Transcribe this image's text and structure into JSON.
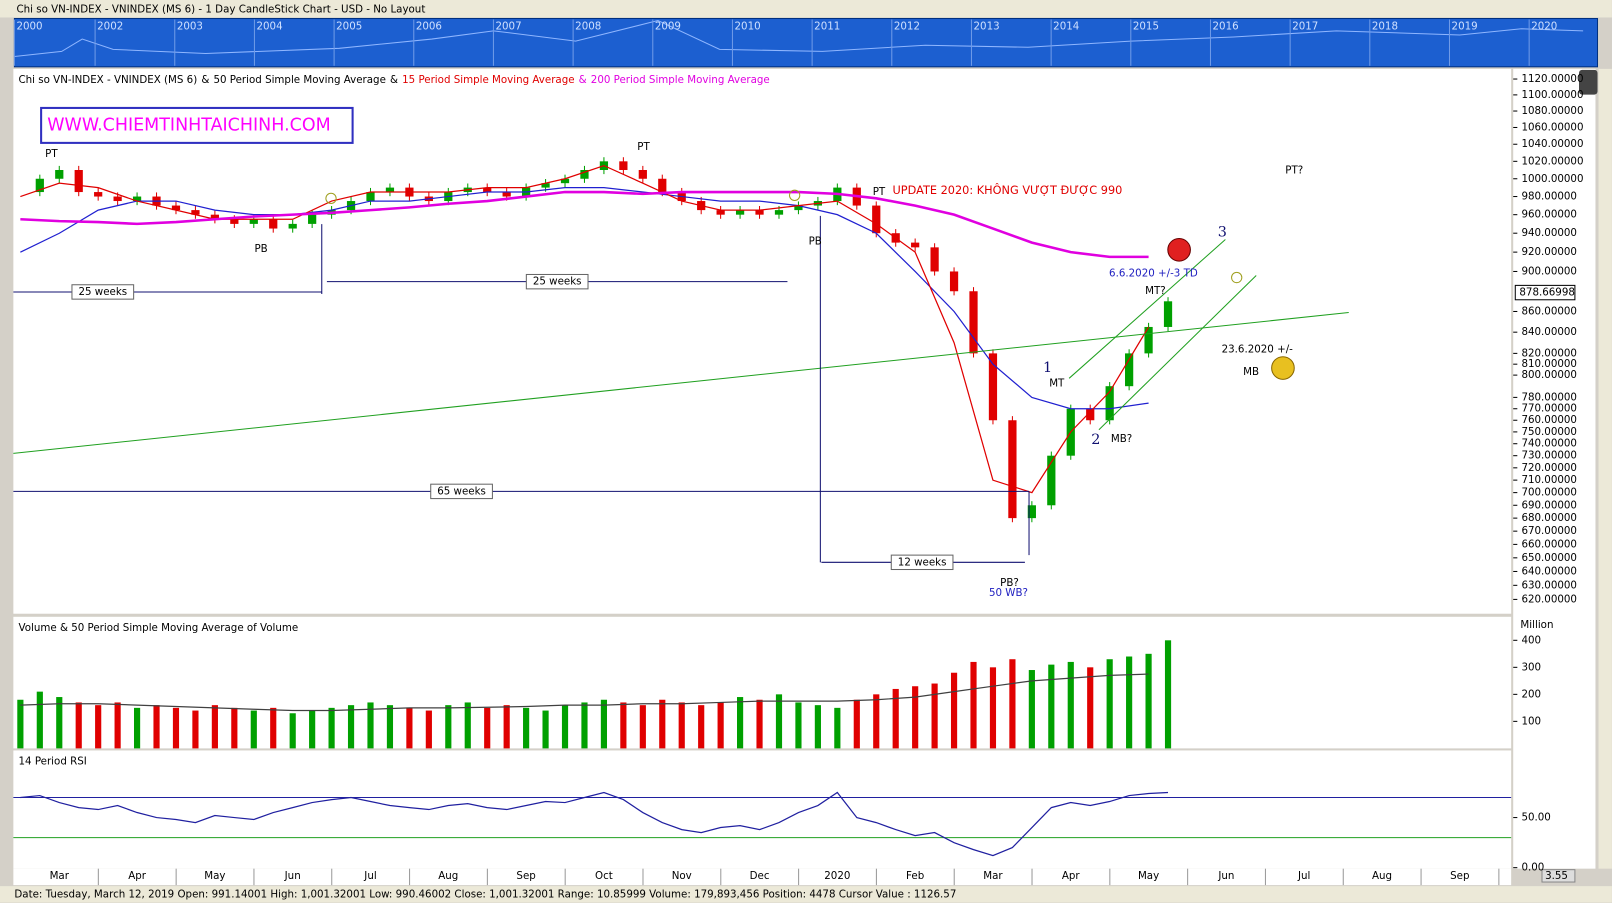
{
  "window": {
    "title": "Chi so VN-INDEX - VNINDEX (MS 6) - 1 Day CandleStick Chart - USD - No Layout",
    "overview_years": [
      "2000",
      "2002",
      "2003",
      "2004",
      "2005",
      "2006",
      "2007",
      "2008",
      "2009",
      "2010",
      "2011",
      "2012",
      "2013",
      "2014",
      "2015",
      "2016",
      "2017",
      "2018",
      "2019",
      "2020"
    ]
  },
  "watermark": "WWW.CHIEMTINHTAICHINH.COM",
  "annotations": [
    "PT",
    "PT",
    "PT",
    "PB",
    "PB",
    "25 weeks",
    "25 weeks",
    "65 weeks",
    "12 weeks",
    "UPDATE 2020: KHÔNG VƯỢT ĐƯỢC 990",
    "PT?",
    "6.6.2020 +/-3 TD",
    "MT?",
    "3",
    "1",
    "MT",
    "2",
    "MB?",
    "23.6.2020 +/-",
    "MB",
    "PB?",
    "50 WB?"
  ],
  "status_bar": "Date: Tuesday, March 12, 2019 Open: 991.14001 High: 1,001.32001 Low: 990.46002 Close: 1,001.32001 Range: 10.85999 Volume: 179,893,456 Position: 4478 Cursor Value : 1126.57",
  "zoom": "3.55",
  "chart_data": [
    {
      "type": "candlestick",
      "title": "Chi so VN-INDEX - VNINDEX (MS 6)",
      "legend_separator": "&",
      "log_scale": true,
      "ylim": [
        610,
        1133
      ],
      "yticks": [
        {
          "value": 1120,
          "label": "1120.00000"
        },
        {
          "value": 1100,
          "label": "1100.00000"
        },
        {
          "value": 1080,
          "label": "1080.00000"
        },
        {
          "value": 1060,
          "label": "1060.00000"
        },
        {
          "value": 1040,
          "label": "1040.00000"
        },
        {
          "value": 1020,
          "label": "1020.00000"
        },
        {
          "value": 1000,
          "label": "1000.00000"
        },
        {
          "value": 980,
          "label": "980.00000"
        },
        {
          "value": 960,
          "label": "960.00000"
        },
        {
          "value": 940,
          "label": "940.00000"
        },
        {
          "value": 920,
          "label": "920.00000"
        },
        {
          "value": 900,
          "label": "900.00000"
        },
        {
          "value": 860,
          "label": "860.00000"
        },
        {
          "value": 840,
          "label": "840.00000"
        },
        {
          "value": 820,
          "label": "820.00000"
        },
        {
          "value": 810,
          "label": "810.00000"
        },
        {
          "value": 800,
          "label": "800.00000"
        },
        {
          "value": 780,
          "label": "780.00000"
        },
        {
          "value": 770,
          "label": "770.00000"
        },
        {
          "value": 760,
          "label": "760.00000"
        },
        {
          "value": 750,
          "label": "750.00000"
        },
        {
          "value": 740,
          "label": "740.00000"
        },
        {
          "value": 730,
          "label": "730.00000"
        },
        {
          "value": 720,
          "label": "720.00000"
        },
        {
          "value": 710,
          "label": "710.00000"
        },
        {
          "value": 700,
          "label": "700.00000"
        },
        {
          "value": 690,
          "label": "690.00000"
        },
        {
          "value": 680,
          "label": "680.00000"
        },
        {
          "value": 670,
          "label": "670.00000"
        },
        {
          "value": 660,
          "label": "660.00000"
        },
        {
          "value": 650,
          "label": "650.00000"
        },
        {
          "value": 640,
          "label": "640.00000"
        },
        {
          "value": 630,
          "label": "630.00000"
        },
        {
          "value": 620,
          "label": "620.00000"
        }
      ],
      "last_value": {
        "value": 878.66998,
        "label": "878.66998"
      },
      "series": [
        {
          "name": "Chi so VN-INDEX - VNINDEX (MS 6)",
          "color": "#00a000",
          "down_color": "#e00000",
          "x": [
            0,
            0.25,
            0.5,
            0.75,
            1,
            1.25,
            1.5,
            1.75,
            2,
            2.25,
            2.5,
            2.75,
            3,
            3.25,
            3.5,
            3.75,
            4,
            4.25,
            4.5,
            4.75,
            5,
            5.25,
            5.5,
            5.75,
            6,
            6.25,
            6.5,
            6.75,
            7,
            7.25,
            7.5,
            7.75,
            8,
            8.25,
            8.5,
            8.75,
            9,
            9.25,
            9.5,
            9.75,
            10,
            10.25,
            10.5,
            10.75,
            11,
            11.25,
            11.5,
            11.75,
            12,
            12.25,
            12.5,
            12.75,
            13,
            13.25,
            13.5,
            13.75,
            14,
            14.25,
            14.5,
            14.75
          ],
          "values": [
            985,
            1000,
            1010,
            985,
            980,
            975,
            980,
            970,
            965,
            960,
            955,
            950,
            955,
            945,
            950,
            960,
            965,
            975,
            985,
            990,
            980,
            975,
            985,
            990,
            985,
            980,
            990,
            995,
            1000,
            1010,
            1020,
            1010,
            1000,
            985,
            975,
            965,
            960,
            965,
            960,
            965,
            970,
            975,
            990,
            970,
            940,
            930,
            925,
            900,
            880,
            820,
            760,
            680,
            690,
            730,
            770,
            760,
            790,
            820,
            845,
            870
          ]
        },
        {
          "name": "50 Period Simple Moving Average",
          "color": "#2020d0",
          "x": [
            0,
            0.5,
            1,
            1.5,
            2,
            2.5,
            3,
            3.5,
            4,
            4.5,
            5,
            5.5,
            6,
            6.5,
            7,
            7.5,
            8,
            8.5,
            9,
            9.5,
            10,
            10.5,
            11,
            11.5,
            12,
            12.5,
            13,
            13.5,
            14,
            14.5
          ],
          "values": [
            920,
            940,
            965,
            975,
            975,
            965,
            960,
            960,
            965,
            975,
            975,
            980,
            985,
            985,
            990,
            990,
            985,
            980,
            975,
            975,
            970,
            960,
            940,
            900,
            860,
            810,
            780,
            770,
            770,
            775
          ]
        },
        {
          "name": "15 Period Simple Moving Average",
          "color": "#e00000",
          "x": [
            0,
            0.5,
            1,
            1.5,
            2,
            2.5,
            3,
            3.5,
            4,
            4.5,
            5,
            5.5,
            6,
            6.5,
            7,
            7.5,
            8,
            8.5,
            9,
            9.5,
            10,
            10.5,
            11,
            11.5,
            12,
            12.5,
            13,
            13.5,
            14,
            14.5
          ],
          "values": [
            980,
            995,
            990,
            975,
            965,
            955,
            955,
            955,
            975,
            985,
            985,
            985,
            990,
            990,
            1000,
            1015,
            995,
            975,
            965,
            965,
            970,
            975,
            950,
            920,
            830,
            710,
            700,
            750,
            785,
            845
          ]
        },
        {
          "name": "200 Period Simple Moving Average",
          "color": "#e000e0",
          "x": [
            0,
            0.5,
            1,
            1.5,
            2,
            2.5,
            3,
            3.5,
            4,
            4.5,
            5,
            5.5,
            6,
            6.5,
            7,
            7.5,
            8,
            8.5,
            9,
            9.5,
            10,
            10.5,
            11,
            11.5,
            12,
            12.5,
            13,
            13.5,
            14,
            14.5
          ],
          "values": [
            955,
            953,
            952,
            950,
            952,
            955,
            958,
            960,
            962,
            965,
            968,
            972,
            975,
            980,
            985,
            985,
            983,
            985,
            985,
            985,
            985,
            983,
            978,
            970,
            960,
            945,
            930,
            920,
            915,
            915
          ]
        }
      ]
    },
    {
      "type": "bar",
      "title": "Volume & 50 Period Simple Moving Average of Volume",
      "y_unit": "Million",
      "ylim": [
        0,
        487
      ],
      "yticks": [
        100,
        200,
        300,
        400
      ],
      "series": [
        {
          "color": "#00a000",
          "down_color": "#e00000",
          "values": [
            180,
            210,
            190,
            170,
            160,
            170,
            150,
            160,
            150,
            140,
            160,
            150,
            140,
            150,
            130,
            140,
            150,
            160,
            170,
            160,
            150,
            140,
            160,
            170,
            150,
            160,
            150,
            140,
            160,
            170,
            180,
            170,
            160,
            180,
            170,
            160,
            170,
            190,
            180,
            200,
            170,
            160,
            150,
            180,
            200,
            220,
            230,
            240,
            280,
            320,
            300,
            330,
            290,
            310,
            320,
            300,
            330,
            340,
            350,
            400
          ]
        },
        {
          "color": "#404040",
          "x": [
            0,
            0.5,
            1,
            1.5,
            2,
            2.5,
            3,
            3.5,
            4,
            4.5,
            5,
            5.5,
            6,
            6.5,
            7,
            7.5,
            8,
            8.5,
            9,
            9.5,
            10,
            10.5,
            11,
            11.5,
            12,
            12.5,
            13,
            13.5,
            14,
            14.5
          ],
          "values": [
            160,
            165,
            165,
            160,
            155,
            150,
            145,
            140,
            140,
            145,
            150,
            150,
            152,
            155,
            160,
            160,
            165,
            165,
            170,
            175,
            175,
            175,
            180,
            190,
            210,
            230,
            250,
            260,
            270,
            275
          ]
        }
      ]
    },
    {
      "type": "line",
      "title": "14 Period RSI",
      "ylim": [
        -1,
        117
      ],
      "yticks": [
        {
          "value": 50,
          "label": "50.00"
        },
        {
          "value": 0,
          "label": "0.00"
        }
      ],
      "levels": [
        {
          "value": 70,
          "color": "#2020a0"
        },
        {
          "value": 30,
          "color": "#20a020"
        }
      ],
      "xlim": [
        -0.09,
        19.16
      ],
      "xticks": [
        {
          "value": 0.5,
          "label": "Mar"
        },
        {
          "value": 1.5,
          "label": "Apr"
        },
        {
          "value": 2.5,
          "label": "May"
        },
        {
          "value": 3.5,
          "label": "Jun"
        },
        {
          "value": 4.5,
          "label": "Jul"
        },
        {
          "value": 5.5,
          "label": "Aug"
        },
        {
          "value": 6.5,
          "label": "Sep"
        },
        {
          "value": 7.5,
          "label": "Oct"
        },
        {
          "value": 8.5,
          "label": "Nov"
        },
        {
          "value": 9.5,
          "label": "Dec"
        },
        {
          "value": 10.5,
          "label": "2020"
        },
        {
          "value": 11.5,
          "label": "Feb"
        },
        {
          "value": 12.5,
          "label": "Mar"
        },
        {
          "value": 13.5,
          "label": "Apr"
        },
        {
          "value": 14.5,
          "label": "May"
        },
        {
          "value": 15.5,
          "label": "Jun"
        },
        {
          "value": 16.5,
          "label": "Jul"
        },
        {
          "value": 17.5,
          "label": "Aug"
        },
        {
          "value": 18.5,
          "label": "Sep"
        }
      ],
      "series": [
        {
          "color": "#2020a0",
          "values": [
            70,
            72,
            65,
            60,
            58,
            62,
            55,
            50,
            48,
            45,
            52,
            50,
            48,
            55,
            60,
            65,
            68,
            70,
            66,
            62,
            60,
            58,
            62,
            64,
            60,
            58,
            62,
            66,
            65,
            70,
            75,
            68,
            55,
            45,
            38,
            35,
            40,
            42,
            38,
            45,
            55,
            62,
            75,
            50,
            45,
            38,
            32,
            35,
            25,
            18,
            12,
            20,
            40,
            60,
            65,
            62,
            66,
            72,
            74,
            75
          ]
        }
      ]
    }
  ]
}
